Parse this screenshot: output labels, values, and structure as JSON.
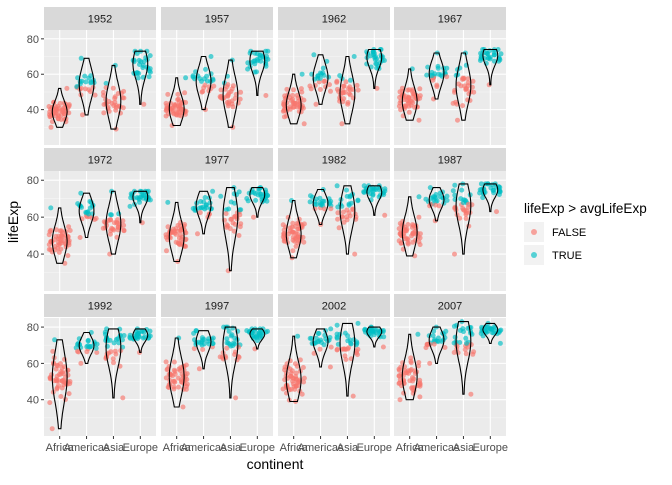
{
  "chart_data": {
    "type": "scatter",
    "subtype": "faceted jitter scatter with violin overlay",
    "xlabel": "continent",
    "ylabel": "lifeExp",
    "categories": [
      "Africa",
      "Americas",
      "Asia",
      "Europe"
    ],
    "ylim": [
      20,
      85
    ],
    "yticks": [
      40,
      60,
      80
    ],
    "grid": true,
    "legend": {
      "title": "lifeExp > avgLifeExp",
      "placement": "right",
      "entries": [
        {
          "label": "FALSE",
          "color": "#F8766D"
        },
        {
          "label": "TRUE",
          "color": "#00BFC4"
        }
      ]
    },
    "colors": {
      "false": "#F8766D",
      "true": "#00BFC4",
      "panel_bg": "#EBEBEB",
      "strip_bg": "#D9D9D9",
      "violin": "#000000"
    },
    "facets": [
      {
        "year": "1952",
        "ranges": [
          [
            30,
            52
          ],
          [
            37,
            69
          ],
          [
            29,
            65
          ],
          [
            43,
            73
          ]
        ],
        "medians": [
          38.8,
          54.7,
          44.9,
          65.9
        ]
      },
      {
        "year": "1957",
        "ranges": [
          [
            31,
            58
          ],
          [
            40,
            70
          ],
          [
            30,
            68
          ],
          [
            48,
            73
          ]
        ],
        "medians": [
          40.6,
          56.1,
          48.3,
          67.7
        ]
      },
      {
        "year": "1962",
        "ranges": [
          [
            32,
            60
          ],
          [
            43,
            71
          ],
          [
            32,
            70
          ],
          [
            52,
            74
          ]
        ],
        "medians": [
          42.6,
          58.3,
          49.3,
          69.5
        ]
      },
      {
        "year": "1967",
        "ranges": [
          [
            34,
            63
          ],
          [
            46,
            72
          ],
          [
            34,
            72
          ],
          [
            54,
            74
          ]
        ],
        "medians": [
          44.7,
          60.5,
          53.7,
          70.6
        ]
      },
      {
        "year": "1972",
        "ranges": [
          [
            35,
            65
          ],
          [
            49,
            73
          ],
          [
            40,
            74
          ],
          [
            57,
            74
          ]
        ],
        "medians": [
          47.0,
          63.4,
          56.5,
          70.9
        ]
      },
      {
        "year": "1977",
        "ranges": [
          [
            36,
            68
          ],
          [
            51,
            74
          ],
          [
            31,
            76
          ],
          [
            60,
            76
          ]
        ],
        "medians": [
          49.3,
          66.4,
          60.8,
          72.3
        ]
      },
      {
        "year": "1982",
        "ranges": [
          [
            38,
            69
          ],
          [
            56,
            75
          ],
          [
            40,
            77
          ],
          [
            61,
            77
          ]
        ],
        "medians": [
          50.8,
          67.4,
          63.7,
          73.5
        ]
      },
      {
        "year": "1987",
        "ranges": [
          [
            39,
            71
          ],
          [
            58,
            76
          ],
          [
            40,
            78
          ],
          [
            63,
            78
          ]
        ],
        "medians": [
          51.6,
          69.5,
          66.3,
          74.8
        ]
      },
      {
        "year": "1992",
        "ranges": [
          [
            24,
            73
          ],
          [
            60,
            77
          ],
          [
            41,
            79
          ],
          [
            66,
            79
          ]
        ],
        "medians": [
          52.4,
          69.9,
          68.7,
          75.5
        ]
      },
      {
        "year": "1997",
        "ranges": [
          [
            36,
            74
          ],
          [
            57,
            78
          ],
          [
            41,
            80
          ],
          [
            68,
            79
          ]
        ],
        "medians": [
          52.8,
          72.1,
          70.3,
          76.1
        ]
      },
      {
        "year": "2002",
        "ranges": [
          [
            39,
            75
          ],
          [
            58,
            79
          ],
          [
            42,
            82
          ],
          [
            69,
            80
          ]
        ],
        "medians": [
          51.2,
          72.0,
          71.0,
          77.5
        ]
      },
      {
        "year": "2007",
        "ranges": [
          [
            40,
            76
          ],
          [
            60,
            80
          ],
          [
            43,
            83
          ],
          [
            71,
            82
          ]
        ],
        "medians": [
          52.9,
          72.9,
          72.4,
          78.6
        ]
      }
    ]
  }
}
